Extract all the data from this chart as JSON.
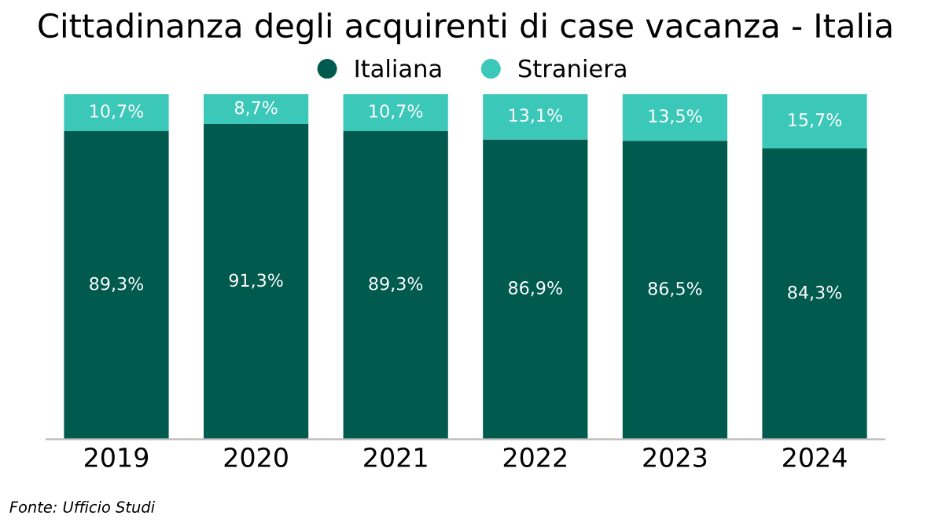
{
  "chart_data": {
    "type": "bar",
    "stacked": true,
    "title": "Cittadinanza degli acquirenti di case vacanza - Italia",
    "categories": [
      "2019",
      "2020",
      "2021",
      "2022",
      "2023",
      "2024"
    ],
    "series": [
      {
        "name": "Italiana",
        "color": "#005a4e",
        "values": [
          89.3,
          91.3,
          89.3,
          86.9,
          86.5,
          84.3
        ],
        "value_labels": [
          "89,3%",
          "91,3%",
          "89,3%",
          "86,9%",
          "86,5%",
          "84,3%"
        ]
      },
      {
        "name": "Straniera",
        "color": "#3cc8b8",
        "values": [
          10.7,
          8.7,
          10.7,
          13.1,
          13.5,
          15.7
        ],
        "value_labels": [
          "10,7%",
          "8,7%",
          "10,7%",
          "13,1%",
          "13,5%",
          "15,7%"
        ]
      }
    ],
    "ylim": [
      0,
      100
    ],
    "tick_labels": "x",
    "grid": false,
    "legend": "top",
    "annotations": [
      "Fonte: Ufficio Studi"
    ]
  }
}
